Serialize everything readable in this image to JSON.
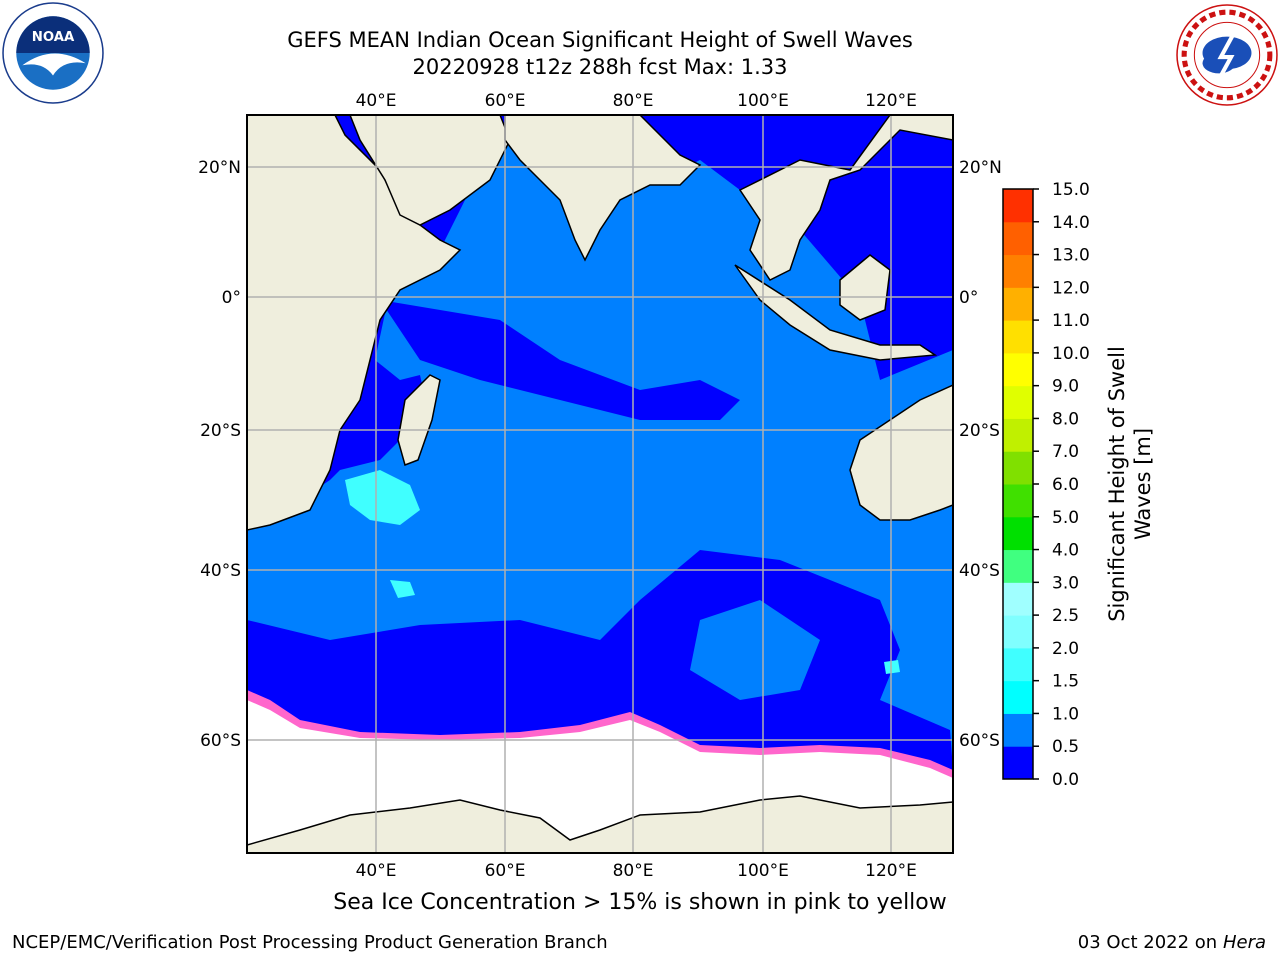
{
  "title": {
    "line1": "GEFS MEAN Indian Ocean Significant Height of Swell Waves",
    "line2": "20220928 t12z 288h fcst   Max: 1.33"
  },
  "logos": {
    "left": "noaa-logo",
    "right": "nws-logo"
  },
  "map": {
    "lon_ticks": [
      "40°E",
      "60°E",
      "80°E",
      "100°E",
      "120°E"
    ],
    "lat_ticks": [
      "20°N",
      "0°",
      "20°S",
      "40°S",
      "60°S"
    ],
    "colors": {
      "ocean_low": "#0000ff",
      "ocean_mid": "#0080ff",
      "ocean_high": "#00ffff",
      "land": "#efeedd",
      "ice": "#ffffff",
      "ice_edge": "#ff66cc",
      "grid": "#b0b0b0"
    }
  },
  "colorbar": {
    "label_line1": "Significant Height of Swell",
    "label_line2": "Waves [m]",
    "ticks": [
      "0.0",
      "0.5",
      "1.0",
      "1.5",
      "2.0",
      "2.5",
      "3.0",
      "4.0",
      "5.0",
      "6.0",
      "7.0",
      "8.0",
      "9.0",
      "10.0",
      "11.0",
      "12.0",
      "13.0",
      "14.0",
      "15.0"
    ],
    "colors": [
      "#0000ff",
      "#0080ff",
      "#00ffff",
      "#40ffff",
      "#80ffff",
      "#a0ffff",
      "#40ff80",
      "#00e000",
      "#40e000",
      "#80e000",
      "#c0f000",
      "#e0ff00",
      "#ffff00",
      "#ffe000",
      "#ffb000",
      "#ff8000",
      "#ff6000",
      "#ff3000",
      "#ff0000"
    ]
  },
  "caption": "Sea Ice Concentration > 15% is shown in pink to yellow",
  "footer": {
    "left": "NCEP/EMC/Verification Post Processing Product Generation Branch",
    "right_prefix": "03 Oct 2022 on ",
    "right_host": "Hera"
  }
}
